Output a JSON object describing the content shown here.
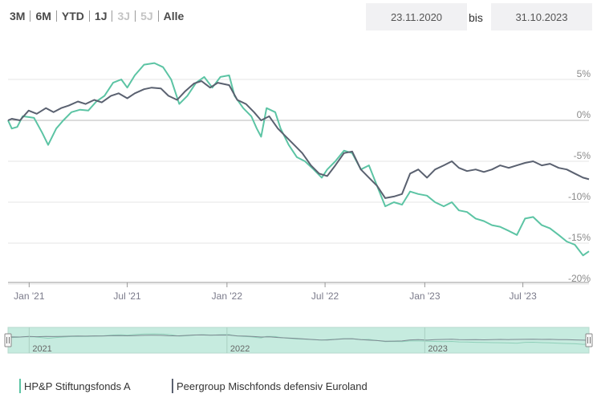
{
  "range_buttons": [
    {
      "label": "3M",
      "enabled": true
    },
    {
      "label": "6M",
      "enabled": true
    },
    {
      "label": "YTD",
      "enabled": true
    },
    {
      "label": "1J",
      "enabled": true
    },
    {
      "label": "3J",
      "enabled": false
    },
    {
      "label": "5J",
      "enabled": false
    },
    {
      "label": "Alle",
      "enabled": true
    }
  ],
  "date_range": {
    "from": "23.11.2020",
    "separator": "bis",
    "to": "31.10.2023"
  },
  "colors": {
    "fund": "#5cc4a4",
    "peer": "#5a6170",
    "navigator": "#c6ebdf"
  },
  "chart_data": {
    "type": "line",
    "title": "",
    "xlabel": "",
    "ylabel": "",
    "x_ticks": [
      "Jan '21",
      "Jul '21",
      "Jan '22",
      "Jul '22",
      "Jan '23",
      "Jul '23"
    ],
    "y_ticks": [
      "5%",
      "0%",
      "-5%",
      "-10%",
      "-15%",
      "-20%"
    ],
    "ylim": [
      -20,
      10
    ],
    "xlim": [
      "2020-11-23",
      "2023-10-31"
    ],
    "grid": true,
    "legend_position": "bottom-left",
    "series": [
      {
        "name": "HP&P Stiftungsfonds A",
        "points": [
          [
            "2020-11-23",
            0.0
          ],
          [
            "2020-11-30",
            -1.0
          ],
          [
            "2020-12-10",
            -0.8
          ],
          [
            "2020-12-20",
            0.5
          ],
          [
            "2020-12-31",
            0.4
          ],
          [
            "2021-01-10",
            0.3
          ],
          [
            "2021-01-25",
            -1.5
          ],
          [
            "2021-02-05",
            -3.0
          ],
          [
            "2021-02-20",
            -1.0
          ],
          [
            "2021-03-05",
            0.0
          ],
          [
            "2021-03-20",
            1.0
          ],
          [
            "2021-04-05",
            1.3
          ],
          [
            "2021-04-20",
            1.2
          ],
          [
            "2021-05-05",
            2.3
          ],
          [
            "2021-05-20",
            3.0
          ],
          [
            "2021-06-05",
            4.6
          ],
          [
            "2021-06-20",
            5.0
          ],
          [
            "2021-07-01",
            4.0
          ],
          [
            "2021-07-15",
            5.5
          ],
          [
            "2021-08-01",
            6.8
          ],
          [
            "2021-08-20",
            7.0
          ],
          [
            "2021-09-05",
            6.5
          ],
          [
            "2021-09-20",
            5.0
          ],
          [
            "2021-10-05",
            2.0
          ],
          [
            "2021-10-20",
            3.0
          ],
          [
            "2021-11-05",
            4.6
          ],
          [
            "2021-11-20",
            5.3
          ],
          [
            "2021-12-05",
            4.0
          ],
          [
            "2021-12-20",
            5.3
          ],
          [
            "2022-01-05",
            5.5
          ],
          [
            "2022-01-15",
            3.0
          ],
          [
            "2022-01-31",
            1.5
          ],
          [
            "2022-02-15",
            0.5
          ],
          [
            "2022-02-25",
            -1.0
          ],
          [
            "2022-03-05",
            -2.0
          ],
          [
            "2022-03-15",
            1.5
          ],
          [
            "2022-03-31",
            1.0
          ],
          [
            "2022-04-10",
            -1.0
          ],
          [
            "2022-04-25",
            -3.0
          ],
          [
            "2022-05-10",
            -4.5
          ],
          [
            "2022-05-25",
            -5.0
          ],
          [
            "2022-06-10",
            -6.0
          ],
          [
            "2022-06-25",
            -7.0
          ],
          [
            "2022-07-05",
            -6.0
          ],
          [
            "2022-07-20",
            -5.0
          ],
          [
            "2022-08-05",
            -3.7
          ],
          [
            "2022-08-20",
            -4.0
          ],
          [
            "2022-09-05",
            -6.0
          ],
          [
            "2022-09-20",
            -5.5
          ],
          [
            "2022-10-05",
            -8.0
          ],
          [
            "2022-10-20",
            -10.5
          ],
          [
            "2022-11-05",
            -10.0
          ],
          [
            "2022-11-20",
            -10.3
          ],
          [
            "2022-12-05",
            -8.7
          ],
          [
            "2022-12-20",
            -9.0
          ],
          [
            "2023-01-05",
            -9.2
          ],
          [
            "2023-01-20",
            -10.0
          ],
          [
            "2023-02-05",
            -10.5
          ],
          [
            "2023-02-20",
            -10.0
          ],
          [
            "2023-03-05",
            -11.0
          ],
          [
            "2023-03-20",
            -11.2
          ],
          [
            "2023-04-05",
            -12.0
          ],
          [
            "2023-04-20",
            -12.3
          ],
          [
            "2023-05-05",
            -12.8
          ],
          [
            "2023-05-20",
            -13.0
          ],
          [
            "2023-06-05",
            -13.5
          ],
          [
            "2023-06-20",
            -14.0
          ],
          [
            "2023-07-05",
            -12.0
          ],
          [
            "2023-07-20",
            -11.8
          ],
          [
            "2023-08-05",
            -12.8
          ],
          [
            "2023-08-20",
            -13.2
          ],
          [
            "2023-09-05",
            -14.0
          ],
          [
            "2023-09-20",
            -14.8
          ],
          [
            "2023-10-05",
            -15.2
          ],
          [
            "2023-10-20",
            -16.5
          ],
          [
            "2023-10-31",
            -16.0
          ]
        ]
      },
      {
        "name": "Peergroup Mischfonds defensiv Euroland",
        "points": [
          [
            "2020-11-23",
            0.0
          ],
          [
            "2020-11-30",
            0.2
          ],
          [
            "2020-12-15",
            0.0
          ],
          [
            "2020-12-31",
            1.2
          ],
          [
            "2021-01-15",
            0.8
          ],
          [
            "2021-02-01",
            1.5
          ],
          [
            "2021-02-15",
            1.0
          ],
          [
            "2021-03-01",
            1.5
          ],
          [
            "2021-03-15",
            1.8
          ],
          [
            "2021-04-01",
            2.3
          ],
          [
            "2021-04-15",
            2.0
          ],
          [
            "2021-05-01",
            2.5
          ],
          [
            "2021-05-15",
            2.2
          ],
          [
            "2021-06-01",
            3.0
          ],
          [
            "2021-06-15",
            3.3
          ],
          [
            "2021-07-01",
            2.7
          ],
          [
            "2021-07-15",
            3.3
          ],
          [
            "2021-08-01",
            3.8
          ],
          [
            "2021-08-15",
            4.0
          ],
          [
            "2021-09-01",
            3.9
          ],
          [
            "2021-09-15",
            3.0
          ],
          [
            "2021-10-01",
            2.5
          ],
          [
            "2021-10-15",
            3.5
          ],
          [
            "2021-11-01",
            4.5
          ],
          [
            "2021-11-15",
            4.8
          ],
          [
            "2021-12-01",
            4.0
          ],
          [
            "2021-12-15",
            4.6
          ],
          [
            "2022-01-05",
            4.3
          ],
          [
            "2022-01-20",
            2.5
          ],
          [
            "2022-02-05",
            2.0
          ],
          [
            "2022-02-20",
            1.0
          ],
          [
            "2022-03-05",
            0.0
          ],
          [
            "2022-03-20",
            0.5
          ],
          [
            "2022-04-05",
            -1.0
          ],
          [
            "2022-04-20",
            -2.0
          ],
          [
            "2022-05-05",
            -3.0
          ],
          [
            "2022-05-20",
            -4.0
          ],
          [
            "2022-06-05",
            -5.5
          ],
          [
            "2022-06-20",
            -6.5
          ],
          [
            "2022-07-05",
            -6.8
          ],
          [
            "2022-07-20",
            -5.5
          ],
          [
            "2022-08-05",
            -4.0
          ],
          [
            "2022-08-20",
            -3.8
          ],
          [
            "2022-09-05",
            -6.0
          ],
          [
            "2022-09-20",
            -7.0
          ],
          [
            "2022-10-05",
            -8.0
          ],
          [
            "2022-10-20",
            -9.5
          ],
          [
            "2022-11-05",
            -9.3
          ],
          [
            "2022-11-20",
            -9.0
          ],
          [
            "2022-12-05",
            -6.5
          ],
          [
            "2022-12-20",
            -6.0
          ],
          [
            "2023-01-05",
            -7.0
          ],
          [
            "2023-01-20",
            -6.0
          ],
          [
            "2023-02-05",
            -5.5
          ],
          [
            "2023-02-20",
            -5.0
          ],
          [
            "2023-03-05",
            -5.8
          ],
          [
            "2023-03-20",
            -6.2
          ],
          [
            "2023-04-05",
            -6.0
          ],
          [
            "2023-04-20",
            -6.3
          ],
          [
            "2023-05-05",
            -6.0
          ],
          [
            "2023-05-20",
            -5.5
          ],
          [
            "2023-06-05",
            -5.8
          ],
          [
            "2023-06-20",
            -5.5
          ],
          [
            "2023-07-05",
            -5.2
          ],
          [
            "2023-07-20",
            -5.0
          ],
          [
            "2023-08-05",
            -5.5
          ],
          [
            "2023-08-20",
            -5.3
          ],
          [
            "2023-09-05",
            -5.8
          ],
          [
            "2023-09-20",
            -6.0
          ],
          [
            "2023-10-05",
            -6.5
          ],
          [
            "2023-10-20",
            -7.0
          ],
          [
            "2023-10-31",
            -7.2
          ]
        ]
      }
    ],
    "navigator": {
      "labels": [
        "2021",
        "2022",
        "2023"
      ]
    }
  }
}
